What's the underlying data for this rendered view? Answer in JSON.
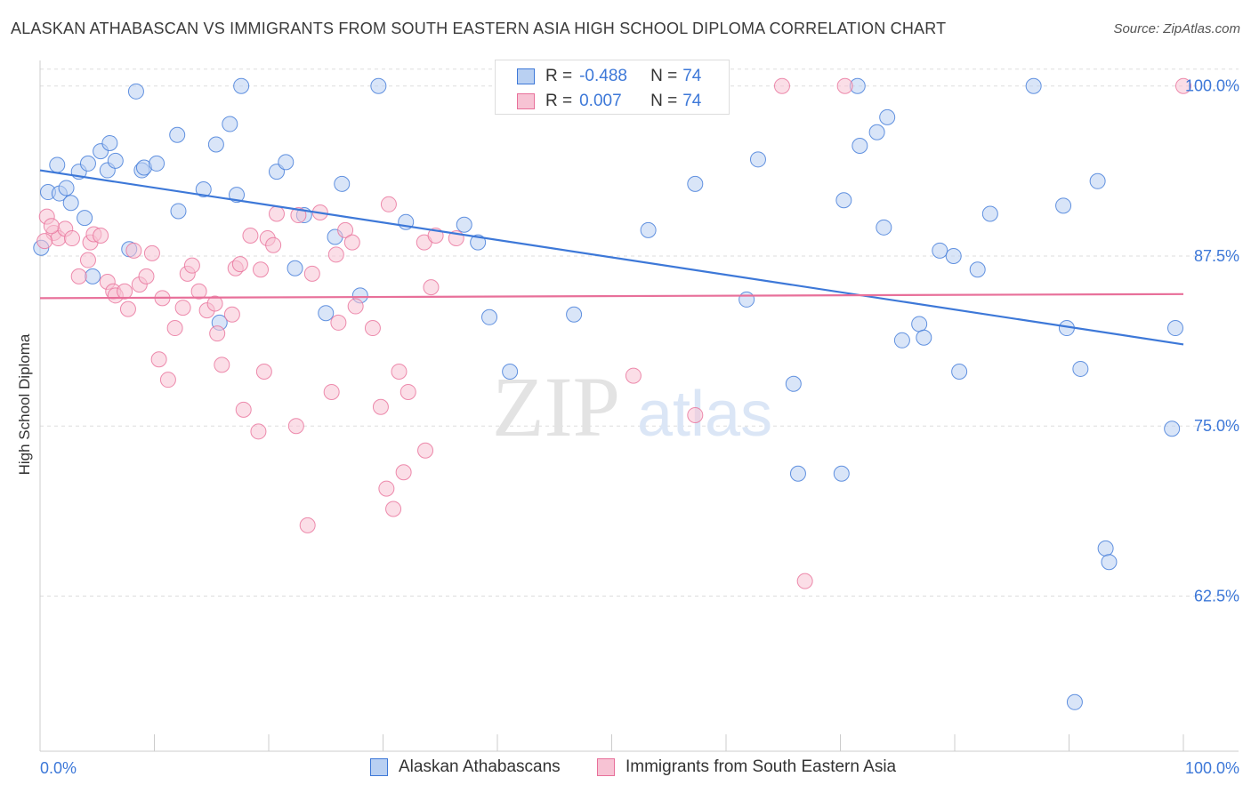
{
  "header": {
    "title": "ALASKAN ATHABASCAN VS IMMIGRANTS FROM SOUTH EASTERN ASIA HIGH SCHOOL DIPLOMA CORRELATION CHART",
    "source": "Source: ZipAtlas.com"
  },
  "colors": {
    "blue": "#3d78d8",
    "blue_fill": "#b9d0f2",
    "pink": "#e8709a",
    "pink_fill": "#f7c3d4",
    "grid": "#dddddd",
    "tick_label": "#3d78d8"
  },
  "legend": {
    "r_label": "R =",
    "n_label": "N =",
    "series1": {
      "r": "-0.488",
      "n": "74"
    },
    "series2": {
      "r": "0.007",
      "n": "74"
    }
  },
  "bottom_legend": {
    "series1": "Alaskan Athabascans",
    "series2": "Immigrants from South Eastern Asia"
  },
  "watermark": {
    "zip": "ZIP",
    "atlas": "atlas"
  },
  "chart_data": {
    "type": "scatter",
    "title": "ALASKAN ATHABASCAN VS IMMIGRANTS FROM SOUTH EASTERN ASIA HIGH SCHOOL DIPLOMA CORRELATION CHART",
    "xlabel": "",
    "ylabel": "High School Diploma",
    "xlim": [
      0,
      100
    ],
    "ylim": [
      51.5,
      102
    ],
    "x_tick_labels": [
      "0.0%",
      "100.0%"
    ],
    "y_ticks": [
      62.5,
      75.0,
      87.5,
      100.0
    ],
    "y_tick_labels": [
      "62.5%",
      "75.0%",
      "87.5%",
      "100.0%"
    ],
    "grid": true,
    "legend_position": "top-center",
    "series": [
      {
        "name": "Alaskan Athabascans",
        "color": "#3d78d8",
        "r": -0.488,
        "n": 74,
        "trend": {
          "x": [
            0,
            100
          ],
          "y": [
            93.8,
            81.0
          ]
        },
        "points": [
          [
            0.1,
            88.1
          ],
          [
            0.7,
            92.2
          ],
          [
            1.5,
            94.2
          ],
          [
            1.7,
            92.1
          ],
          [
            2.3,
            92.5
          ],
          [
            2.7,
            91.4
          ],
          [
            3.4,
            93.7
          ],
          [
            3.9,
            90.3
          ],
          [
            4.2,
            94.3
          ],
          [
            4.6,
            86.0
          ],
          [
            5.3,
            95.2
          ],
          [
            5.9,
            93.8
          ],
          [
            6.1,
            95.8
          ],
          [
            6.6,
            94.5
          ],
          [
            7.8,
            88.0
          ],
          [
            8.4,
            99.6
          ],
          [
            8.9,
            93.8
          ],
          [
            9.1,
            94.0
          ],
          [
            10.2,
            94.3
          ],
          [
            12.0,
            96.4
          ],
          [
            12.1,
            90.8
          ],
          [
            14.3,
            92.4
          ],
          [
            15.4,
            95.7
          ],
          [
            15.7,
            82.6
          ],
          [
            16.6,
            97.2
          ],
          [
            17.2,
            92.0
          ],
          [
            17.6,
            100.0
          ],
          [
            20.7,
            93.7
          ],
          [
            21.5,
            94.4
          ],
          [
            22.3,
            86.6
          ],
          [
            23.1,
            90.5
          ],
          [
            25.0,
            83.3
          ],
          [
            25.8,
            88.9
          ],
          [
            26.4,
            92.8
          ],
          [
            28.0,
            84.6
          ],
          [
            29.6,
            100.0
          ],
          [
            32.0,
            90.0
          ],
          [
            37.1,
            89.8
          ],
          [
            38.3,
            88.5
          ],
          [
            39.3,
            83.0
          ],
          [
            41.1,
            79.0
          ],
          [
            42.2,
            100.0
          ],
          [
            46.7,
            83.2
          ],
          [
            53.2,
            89.4
          ],
          [
            57.3,
            92.8
          ],
          [
            61.8,
            84.3
          ],
          [
            62.8,
            94.6
          ],
          [
            65.9,
            78.1
          ],
          [
            66.3,
            71.5
          ],
          [
            70.1,
            71.5
          ],
          [
            70.3,
            91.6
          ],
          [
            71.5,
            100.0
          ],
          [
            71.7,
            95.6
          ],
          [
            73.2,
            96.6
          ],
          [
            73.8,
            89.6
          ],
          [
            74.1,
            97.7
          ],
          [
            75.4,
            81.3
          ],
          [
            76.9,
            82.5
          ],
          [
            77.3,
            81.5
          ],
          [
            78.7,
            87.9
          ],
          [
            79.9,
            87.5
          ],
          [
            80.4,
            79.0
          ],
          [
            82.0,
            86.5
          ],
          [
            83.1,
            90.6
          ],
          [
            86.9,
            100.0
          ],
          [
            89.5,
            91.2
          ],
          [
            89.8,
            82.2
          ],
          [
            90.5,
            54.7
          ],
          [
            91.0,
            79.2
          ],
          [
            92.5,
            93.0
          ],
          [
            93.2,
            66.0
          ],
          [
            93.5,
            65.0
          ],
          [
            99.0,
            74.8
          ],
          [
            99.3,
            82.2
          ]
        ]
      },
      {
        "name": "Immigrants from South Eastern Asia",
        "color": "#e8709a",
        "r": 0.007,
        "n": 74,
        "trend": {
          "x": [
            0,
            100
          ],
          "y": [
            84.4,
            84.7
          ]
        },
        "points": [
          [
            0.6,
            90.4
          ],
          [
            1.2,
            89.2
          ],
          [
            1.6,
            88.8
          ],
          [
            2.2,
            89.5
          ],
          [
            2.8,
            88.8
          ],
          [
            3.4,
            86.0
          ],
          [
            4.2,
            87.2
          ],
          [
            4.4,
            88.5
          ],
          [
            4.7,
            89.1
          ],
          [
            5.3,
            89.0
          ],
          [
            5.9,
            85.6
          ],
          [
            6.4,
            84.9
          ],
          [
            6.6,
            84.6
          ],
          [
            7.4,
            84.9
          ],
          [
            7.7,
            83.6
          ],
          [
            8.2,
            87.9
          ],
          [
            8.7,
            85.4
          ],
          [
            9.3,
            86.0
          ],
          [
            9.8,
            87.7
          ],
          [
            10.4,
            79.9
          ],
          [
            10.7,
            84.4
          ],
          [
            11.2,
            78.4
          ],
          [
            11.8,
            82.2
          ],
          [
            12.5,
            83.7
          ],
          [
            12.9,
            86.2
          ],
          [
            13.3,
            86.8
          ],
          [
            13.9,
            84.9
          ],
          [
            14.6,
            83.5
          ],
          [
            15.3,
            84.0
          ],
          [
            15.5,
            81.8
          ],
          [
            15.9,
            79.5
          ],
          [
            16.8,
            83.2
          ],
          [
            17.1,
            86.6
          ],
          [
            17.5,
            86.9
          ],
          [
            17.8,
            76.2
          ],
          [
            18.4,
            89.0
          ],
          [
            19.1,
            74.6
          ],
          [
            19.3,
            86.5
          ],
          [
            19.6,
            79.0
          ],
          [
            19.9,
            88.8
          ],
          [
            20.4,
            88.3
          ],
          [
            20.7,
            90.6
          ],
          [
            22.4,
            75.0
          ],
          [
            22.6,
            90.5
          ],
          [
            23.4,
            67.7
          ],
          [
            23.8,
            86.2
          ],
          [
            24.5,
            90.7
          ],
          [
            25.5,
            77.5
          ],
          [
            25.9,
            87.6
          ],
          [
            26.1,
            82.6
          ],
          [
            26.7,
            89.4
          ],
          [
            27.3,
            88.5
          ],
          [
            27.6,
            83.8
          ],
          [
            29.1,
            82.2
          ],
          [
            29.8,
            76.4
          ],
          [
            30.3,
            70.4
          ],
          [
            30.5,
            91.3
          ],
          [
            30.9,
            68.9
          ],
          [
            31.4,
            79.0
          ],
          [
            31.8,
            71.6
          ],
          [
            32.2,
            77.5
          ],
          [
            33.6,
            88.5
          ],
          [
            33.7,
            73.2
          ],
          [
            34.2,
            85.2
          ],
          [
            34.6,
            89.0
          ],
          [
            36.4,
            88.8
          ],
          [
            51.9,
            78.7
          ],
          [
            57.3,
            75.8
          ],
          [
            64.9,
            100.0
          ],
          [
            66.9,
            63.6
          ],
          [
            70.4,
            100.0
          ],
          [
            100.0,
            100.0
          ],
          [
            0.4,
            88.6
          ],
          [
            1.0,
            89.7
          ]
        ]
      }
    ]
  }
}
